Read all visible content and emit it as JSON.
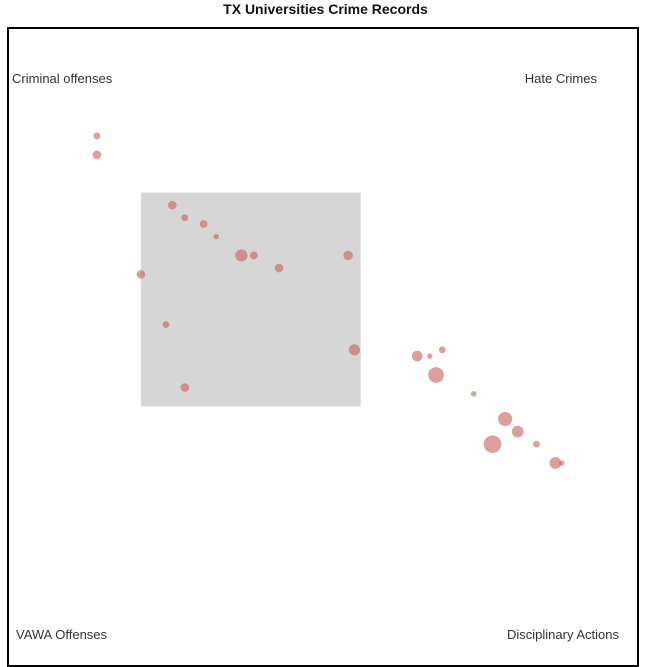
{
  "chart_data": {
    "type": "scatter",
    "title": "TX Universities Crime Records",
    "corner_labels": {
      "top_left": "Criminal offenses",
      "top_right": "Hate Crimes",
      "bottom_left": "VAWA Offenses",
      "bottom_right": "Disciplinary Actions"
    },
    "brush": {
      "x": [
        0.21,
        0.56
      ],
      "y": [
        0.4,
        0.74
      ]
    },
    "points": [
      {
        "x": 0.14,
        "y": 0.83,
        "size": 1
      },
      {
        "x": 0.14,
        "y": 0.8,
        "size": 2
      },
      {
        "x": 0.26,
        "y": 0.72,
        "size": 2
      },
      {
        "x": 0.28,
        "y": 0.7,
        "size": 1
      },
      {
        "x": 0.31,
        "y": 0.69,
        "size": 1.5
      },
      {
        "x": 0.33,
        "y": 0.67,
        "size": 0.5
      },
      {
        "x": 0.37,
        "y": 0.64,
        "size": 5
      },
      {
        "x": 0.39,
        "y": 0.64,
        "size": 1.5
      },
      {
        "x": 0.43,
        "y": 0.62,
        "size": 2
      },
      {
        "x": 0.54,
        "y": 0.64,
        "size": 2.5
      },
      {
        "x": 0.21,
        "y": 0.61,
        "size": 2
      },
      {
        "x": 0.25,
        "y": 0.53,
        "size": 1
      },
      {
        "x": 0.55,
        "y": 0.49,
        "size": 4
      },
      {
        "x": 0.28,
        "y": 0.43,
        "size": 2
      },
      {
        "x": 0.65,
        "y": 0.48,
        "size": 3.5
      },
      {
        "x": 0.67,
        "y": 0.48,
        "size": 0.5
      },
      {
        "x": 0.69,
        "y": 0.49,
        "size": 1
      },
      {
        "x": 0.68,
        "y": 0.45,
        "size": 9
      },
      {
        "x": 0.74,
        "y": 0.42,
        "size": 0.5
      },
      {
        "x": 0.79,
        "y": 0.38,
        "size": 7
      },
      {
        "x": 0.81,
        "y": 0.36,
        "size": 4.5
      },
      {
        "x": 0.84,
        "y": 0.34,
        "size": 1
      },
      {
        "x": 0.77,
        "y": 0.34,
        "size": 12
      },
      {
        "x": 0.87,
        "y": 0.31,
        "size": 4.5
      },
      {
        "x": 0.88,
        "y": 0.31,
        "size": 0.5
      }
    ]
  }
}
